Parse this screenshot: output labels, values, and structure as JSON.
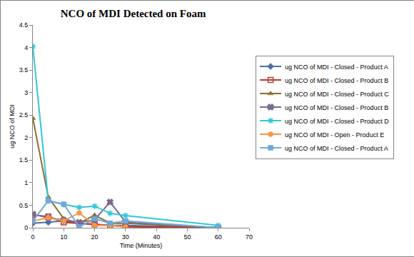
{
  "chart_data": {
    "type": "line",
    "title": "NCO of MDI Detected on Foam",
    "x_label": "Time (Minutes)",
    "y_label": "ug NCO of MDI",
    "xlim": [
      0,
      70
    ],
    "xticks": [
      0,
      10,
      20,
      30,
      40,
      50,
      60,
      70
    ],
    "ylim": [
      0,
      4.5
    ],
    "yticks": [
      0,
      0.5,
      1,
      1.5,
      2,
      2.5,
      3,
      3.5,
      4,
      4.5
    ],
    "grid": false,
    "legend": "right",
    "series": [
      {
        "name": "ug NCO of MDI - Closed - Product A",
        "color": "#4a6fa5",
        "marker": "diamond",
        "x": [
          0,
          5,
          10,
          15,
          20,
          25,
          30,
          60
        ],
        "values": [
          0.1,
          0.12,
          0.15,
          0.1,
          0.08,
          0.05,
          0.05,
          0.0
        ]
      },
      {
        "name": "ug NCO of MDI - Closed - Product B",
        "color": "#c0392b",
        "marker": "square-open",
        "x": [
          0,
          5,
          10,
          15,
          20,
          25,
          30,
          60
        ],
        "values": [
          0.28,
          0.25,
          0.12,
          0.1,
          0.08,
          0.05,
          0.02,
          0.0
        ]
      },
      {
        "name": "ug NCO of MDI - Closed - Product C",
        "color": "#8c6d2c",
        "marker": "triangle",
        "x": [
          0,
          5,
          10,
          15,
          20,
          25,
          30,
          60
        ],
        "values": [
          2.43,
          0.68,
          0.2,
          0.1,
          0.28,
          0.1,
          0.1,
          0.0
        ]
      },
      {
        "name": "ug NCO of MDI - Closed - Product B",
        "color": "#7a6a8f",
        "marker": "x",
        "x": [
          0,
          5,
          10,
          15,
          20,
          25,
          30,
          60
        ],
        "values": [
          0.3,
          0.22,
          0.17,
          0.12,
          0.18,
          0.57,
          0.13,
          0.0
        ]
      },
      {
        "name": "ug NCO of MDI - Closed - Product D",
        "color": "#33c6d8",
        "marker": "star",
        "x": [
          0,
          5,
          10,
          15,
          20,
          25,
          30,
          60
        ],
        "values": [
          4.02,
          0.6,
          0.52,
          0.45,
          0.48,
          0.32,
          0.27,
          0.05
        ]
      },
      {
        "name": "ug NCO of MDI - Open - Product E",
        "color": "#f79646",
        "marker": "circle",
        "x": [
          0,
          5,
          10,
          15,
          20,
          25,
          30
        ],
        "values": [
          0.15,
          0.22,
          0.15,
          0.33,
          0.05,
          0.05,
          0.02
        ]
      },
      {
        "name": "ug NCO of MDI - Closed - Product A",
        "color": "#6fa8dc",
        "marker": "square",
        "x": [
          0,
          5,
          10,
          15,
          20,
          25,
          30,
          60
        ],
        "values": [
          0.15,
          0.6,
          0.52,
          0.02,
          0.2,
          0.1,
          0.15,
          0.0
        ]
      }
    ]
  }
}
